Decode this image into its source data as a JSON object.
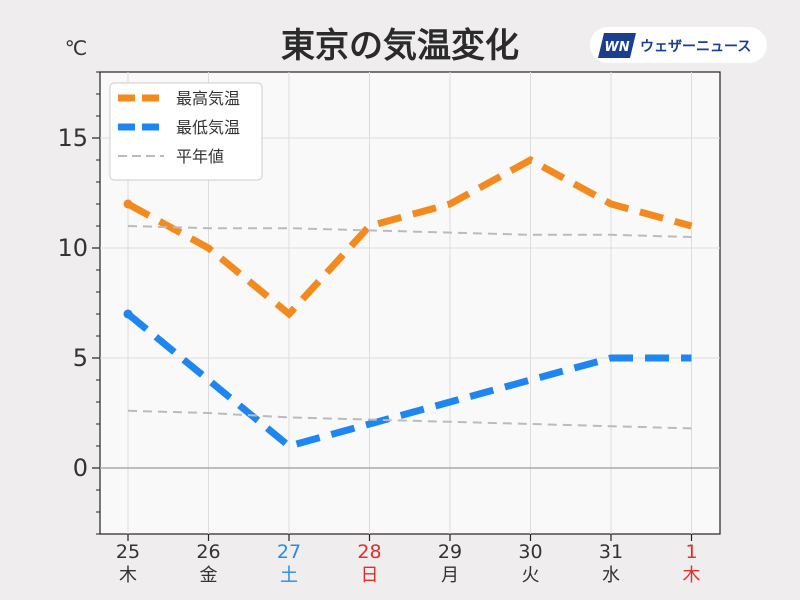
{
  "chart_data": {
    "type": "line",
    "title": "東京の気温変化",
    "unit": "℃",
    "ylim": [
      -3,
      18
    ],
    "yticks": [
      0,
      5,
      10,
      15
    ],
    "grid": true,
    "legend_position": "top-left",
    "categories": [
      {
        "day": "25",
        "weekday": "木",
        "color": "#333333"
      },
      {
        "day": "26",
        "weekday": "金",
        "color": "#333333"
      },
      {
        "day": "27",
        "weekday": "土",
        "color": "#2b8be0"
      },
      {
        "day": "28",
        "weekday": "日",
        "color": "#e0302a"
      },
      {
        "day": "29",
        "weekday": "月",
        "color": "#333333"
      },
      {
        "day": "30",
        "weekday": "火",
        "color": "#333333"
      },
      {
        "day": "31",
        "weekday": "水",
        "color": "#333333"
      },
      {
        "day": "1",
        "weekday": "木",
        "color": "#e0302a"
      }
    ],
    "series": [
      {
        "name": "最高気温",
        "color": "#f28a1e",
        "style": "dashed-thick",
        "values": [
          12,
          10,
          7,
          11,
          12,
          14,
          12,
          11
        ]
      },
      {
        "name": "最低気温",
        "color": "#1e86f0",
        "style": "dashed-thick",
        "values": [
          7,
          4,
          1,
          2,
          3,
          4,
          5,
          5
        ]
      },
      {
        "name": "平年値",
        "color": "#bbbbbb",
        "style": "dashed-thin",
        "values": [
          11.0,
          10.9,
          10.9,
          10.8,
          10.7,
          10.6,
          10.6,
          10.5
        ]
      },
      {
        "name": "",
        "color": "#bbbbbb",
        "style": "dashed-thin",
        "values": [
          2.6,
          2.5,
          2.3,
          2.2,
          2.1,
          2.0,
          1.9,
          1.8
        ]
      }
    ]
  },
  "brand": {
    "logo_text": "WN",
    "name": "ウェザーニュース"
  }
}
